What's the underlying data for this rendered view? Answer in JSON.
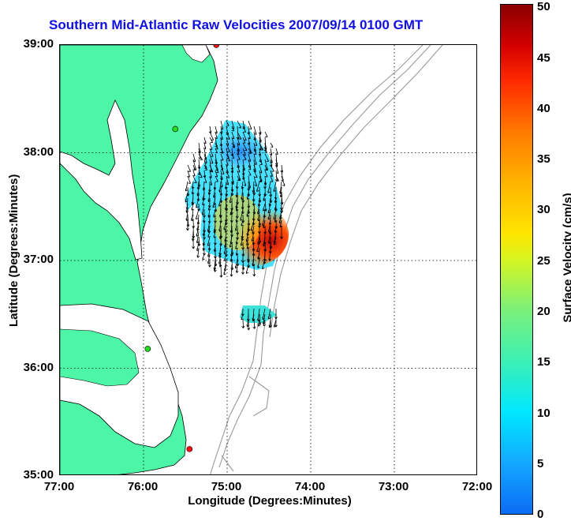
{
  "title": "Southern Mid-Atlantic Raw Velocities 2007/09/14 0100 GMT",
  "axes": {
    "xlabel": "Longitude (Degrees:Minutes)",
    "ylabel": "Latitude (Degrees:Minutes)",
    "xticks": [
      "77:00",
      "76:00",
      "75:00",
      "74:00",
      "73:00",
      "72:00"
    ],
    "yticks": [
      "39:00",
      "38:00",
      "37:00",
      "36:00",
      "35:00"
    ],
    "xlim": [
      -77,
      -72
    ],
    "ylim": [
      35,
      39
    ],
    "grid": "dotted"
  },
  "colorbar": {
    "label": "Surface Velocity (cm/s)",
    "ticks": [
      "0",
      "5",
      "10",
      "15",
      "20",
      "25",
      "30",
      "35",
      "40",
      "45",
      "50"
    ],
    "range": [
      0,
      50
    ],
    "colormap": "jet"
  },
  "colors": {
    "land": "#4df5a6",
    "water": "#ffffff",
    "title": "#1010e0",
    "bathymetry": "#9a9a9a",
    "station_red": "#ff1010",
    "station_green": "#22dd22"
  },
  "stations": [
    {
      "color": "red",
      "lon": -75.13,
      "lat": 39.0
    },
    {
      "color": "green",
      "lon": -75.62,
      "lat": 38.22
    },
    {
      "color": "green",
      "lon": -75.95,
      "lat": 36.18
    },
    {
      "color": "red",
      "lon": -75.45,
      "lat": 35.25
    }
  ]
}
